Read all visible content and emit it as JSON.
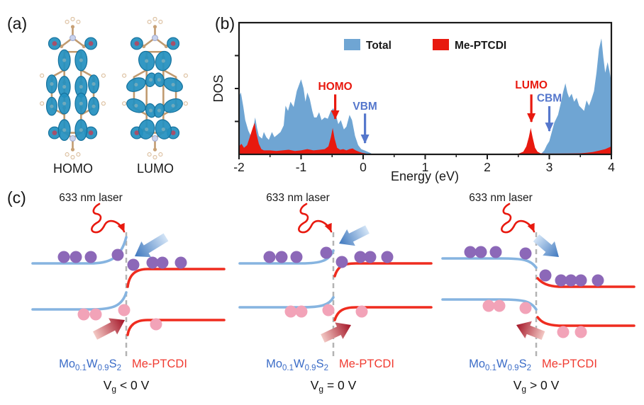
{
  "figure": {
    "background": "#ffffff"
  },
  "panel_a": {
    "label": "(a)",
    "molecules": [
      {
        "name": "HOMO",
        "caption": "HOMO"
      },
      {
        "name": "LUMO",
        "caption": "LUMO"
      }
    ]
  },
  "panel_b": {
    "label": "(b)"
  },
  "chart_data": {
    "type": "area",
    "title": "",
    "xlabel": "Energy (eV)",
    "ylabel": "DOS",
    "xlim": [
      -2,
      4
    ],
    "ylim": [
      0,
      1
    ],
    "y_units": "arbitrary (no numeric ticks shown)",
    "grid": false,
    "legend_position": "top-inside",
    "x_ticks": [
      -2,
      -1,
      0,
      1,
      2,
      3,
      4
    ],
    "x_minor_ticks": [
      -1.5,
      -0.5,
      0.5,
      1.5,
      2.5,
      3.5
    ],
    "series": [
      {
        "name": "Total",
        "color": "#6FA5D3",
        "points": [
          [
            -2.0,
            0.44
          ],
          [
            -1.97,
            0.47
          ],
          [
            -1.93,
            0.36
          ],
          [
            -1.9,
            0.26
          ],
          [
            -1.85,
            0.18
          ],
          [
            -1.8,
            0.13
          ],
          [
            -1.77,
            0.2
          ],
          [
            -1.74,
            0.28
          ],
          [
            -1.71,
            0.2
          ],
          [
            -1.68,
            0.14
          ],
          [
            -1.63,
            0.12
          ],
          [
            -1.6,
            0.17
          ],
          [
            -1.56,
            0.13
          ],
          [
            -1.52,
            0.11
          ],
          [
            -1.47,
            0.17
          ],
          [
            -1.43,
            0.13
          ],
          [
            -1.38,
            0.15
          ],
          [
            -1.33,
            0.17
          ],
          [
            -1.28,
            0.22
          ],
          [
            -1.25,
            0.37
          ],
          [
            -1.21,
            0.33
          ],
          [
            -1.17,
            0.4
          ],
          [
            -1.12,
            0.36
          ],
          [
            -1.07,
            0.48
          ],
          [
            -1.0,
            0.57
          ],
          [
            -0.96,
            0.5
          ],
          [
            -0.93,
            0.4
          ],
          [
            -0.9,
            0.47
          ],
          [
            -0.86,
            0.42
          ],
          [
            -0.82,
            0.33
          ],
          [
            -0.79,
            0.28
          ],
          [
            -0.75,
            0.28
          ],
          [
            -0.71,
            0.32
          ],
          [
            -0.67,
            0.26
          ],
          [
            -0.62,
            0.28
          ],
          [
            -0.57,
            0.27
          ],
          [
            -0.52,
            0.33
          ],
          [
            -0.48,
            0.35
          ],
          [
            -0.44,
            0.3
          ],
          [
            -0.4,
            0.23
          ],
          [
            -0.36,
            0.26
          ],
          [
            -0.31,
            0.19
          ],
          [
            -0.27,
            0.21
          ],
          [
            -0.22,
            0.3
          ],
          [
            -0.18,
            0.26
          ],
          [
            -0.13,
            0.14
          ],
          [
            -0.08,
            0.07
          ],
          [
            -0.03,
            0.04
          ],
          [
            0.02,
            0.03
          ],
          [
            0.07,
            0.02
          ],
          [
            0.12,
            0.01
          ],
          [
            0.15,
            0.0
          ],
          [
            2.85,
            0.0
          ],
          [
            2.88,
            0.01
          ],
          [
            2.92,
            0.03
          ],
          [
            2.96,
            0.07
          ],
          [
            3.0,
            0.1
          ],
          [
            3.04,
            0.17
          ],
          [
            3.08,
            0.24
          ],
          [
            3.1,
            0.26
          ],
          [
            3.14,
            0.3
          ],
          [
            3.18,
            0.38
          ],
          [
            3.22,
            0.47
          ],
          [
            3.26,
            0.54
          ],
          [
            3.29,
            0.47
          ],
          [
            3.32,
            0.43
          ],
          [
            3.36,
            0.46
          ],
          [
            3.4,
            0.4
          ],
          [
            3.44,
            0.43
          ],
          [
            3.48,
            0.37
          ],
          [
            3.52,
            0.35
          ],
          [
            3.56,
            0.33
          ],
          [
            3.6,
            0.41
          ],
          [
            3.64,
            0.37
          ],
          [
            3.68,
            0.42
          ],
          [
            3.72,
            0.48
          ],
          [
            3.76,
            0.62
          ],
          [
            3.8,
            0.8
          ],
          [
            3.84,
            0.88
          ],
          [
            3.87,
            0.74
          ],
          [
            3.9,
            0.62
          ],
          [
            3.94,
            0.7
          ],
          [
            3.97,
            0.63
          ],
          [
            4.0,
            0.55
          ]
        ]
      },
      {
        "name": "Me-PTCDI",
        "color": "#E8190F",
        "points": [
          [
            -2.0,
            0.06
          ],
          [
            -1.96,
            0.08
          ],
          [
            -1.92,
            0.05
          ],
          [
            -1.87,
            0.07
          ],
          [
            -1.82,
            0.14
          ],
          [
            -1.78,
            0.2
          ],
          [
            -1.75,
            0.24
          ],
          [
            -1.72,
            0.16
          ],
          [
            -1.68,
            0.08
          ],
          [
            -1.64,
            0.04
          ],
          [
            -1.6,
            0.03
          ],
          [
            -1.5,
            0.03
          ],
          [
            -1.4,
            0.025
          ],
          [
            -1.3,
            0.03
          ],
          [
            -1.2,
            0.035
          ],
          [
            -1.1,
            0.025
          ],
          [
            -1.0,
            0.03
          ],
          [
            -0.9,
            0.04
          ],
          [
            -0.8,
            0.03
          ],
          [
            -0.7,
            0.035
          ],
          [
            -0.62,
            0.04
          ],
          [
            -0.56,
            0.06
          ],
          [
            -0.52,
            0.13
          ],
          [
            -0.49,
            0.2
          ],
          [
            -0.46,
            0.12
          ],
          [
            -0.42,
            0.05
          ],
          [
            -0.37,
            0.035
          ],
          [
            -0.32,
            0.04
          ],
          [
            -0.27,
            0.03
          ],
          [
            -0.22,
            0.04
          ],
          [
            -0.17,
            0.045
          ],
          [
            -0.12,
            0.03
          ],
          [
            -0.07,
            0.02
          ],
          [
            -0.02,
            0.012
          ],
          [
            0.03,
            0.008
          ],
          [
            0.08,
            0.0
          ],
          [
            2.45,
            0.0
          ],
          [
            2.52,
            0.008
          ],
          [
            2.58,
            0.02
          ],
          [
            2.63,
            0.06
          ],
          [
            2.67,
            0.13
          ],
          [
            2.7,
            0.2
          ],
          [
            2.73,
            0.13
          ],
          [
            2.77,
            0.05
          ],
          [
            2.81,
            0.02
          ],
          [
            2.86,
            0.008
          ],
          [
            2.95,
            0.006
          ],
          [
            3.1,
            0.006
          ],
          [
            3.3,
            0.007
          ],
          [
            3.5,
            0.008
          ],
          [
            3.6,
            0.012
          ],
          [
            3.7,
            0.018
          ],
          [
            3.8,
            0.028
          ],
          [
            3.9,
            0.04
          ],
          [
            4.0,
            0.06
          ]
        ]
      }
    ],
    "legend": [
      {
        "label": "Total",
        "color": "#6FA5D3"
      },
      {
        "label": "Me-PTCDI",
        "color": "#E8190F"
      }
    ],
    "annotations": [
      {
        "label": "HOMO",
        "energy": -0.45,
        "color": "#E8190F",
        "label_y": 0.49,
        "arrow_from": 0.455,
        "arrow_to": 0.27
      },
      {
        "label": "VBM",
        "energy": 0.03,
        "color": "#5577CC",
        "label_y": 0.34,
        "arrow_from": 0.31,
        "arrow_to": 0.086
      },
      {
        "label": "LUMO",
        "energy": 2.71,
        "color": "#E8190F",
        "label_y": 0.5,
        "arrow_from": 0.455,
        "arrow_to": 0.247
      },
      {
        "label": "CBM",
        "energy": 3.0,
        "color": "#5577CC",
        "label_y": 0.4,
        "arrow_from": 0.366,
        "arrow_to": 0.177
      }
    ]
  },
  "panel_c": {
    "label": "(c)",
    "diagrams": [
      {
        "variant": "negative",
        "laser_label": "633 nm laser",
        "left_material_parts": [
          {
            "t": "Mo"
          },
          {
            "t": "0.1",
            "sub": true
          },
          {
            "t": "W"
          },
          {
            "t": "0.9",
            "sub": true
          },
          {
            "t": "S"
          },
          {
            "t": "2",
            "sub": true
          }
        ],
        "right_material": "Me-PTCDI",
        "caption_parts": [
          {
            "t": "V"
          },
          {
            "t": "g",
            "sub": true
          },
          {
            "t": " < 0 V"
          }
        ]
      },
      {
        "variant": "zero",
        "laser_label": "633 nm laser",
        "left_material_parts": [
          {
            "t": "Mo"
          },
          {
            "t": "0.1",
            "sub": true
          },
          {
            "t": "W"
          },
          {
            "t": "0.9",
            "sub": true
          },
          {
            "t": "S"
          },
          {
            "t": "2",
            "sub": true
          }
        ],
        "right_material": "Me-PTCDI",
        "caption_parts": [
          {
            "t": "V"
          },
          {
            "t": "g",
            "sub": true
          },
          {
            "t": " = 0 V"
          }
        ]
      },
      {
        "variant": "positive",
        "laser_label": "633 nm laser",
        "left_material_parts": [
          {
            "t": "Mo"
          },
          {
            "t": "0.1",
            "sub": true
          },
          {
            "t": "W"
          },
          {
            "t": "0.9",
            "sub": true
          },
          {
            "t": "S"
          },
          {
            "t": "2",
            "sub": true
          }
        ],
        "right_material": "Me-PTCDI",
        "caption_parts": [
          {
            "t": "V"
          },
          {
            "t": "g",
            "sub": true
          },
          {
            "t": " > 0 V"
          }
        ]
      }
    ]
  },
  "colors": {
    "total_dos": "#6FA5D3",
    "pdos_red": "#E8190F",
    "band_left_blue": "#86B4E0",
    "band_right_red": "#EF2C1F",
    "electron_purple": "#8C68B8",
    "hole_pink": "#F2A3B8",
    "interface_gray": "#B3B3B3",
    "left_label_blue": "#3B6CC7",
    "right_label_red": "#F03A30",
    "laser_red": "#E8190F",
    "annotation_blue": "#5577CC",
    "electron_arrow_tail": "#D3E4F6",
    "electron_arrow_tip": "#3D77BE",
    "hole_arrow_tail": "#F3C8C4",
    "hole_arrow_tip": "#A31224",
    "orbital_lobe_teal": "#2490BF"
  }
}
